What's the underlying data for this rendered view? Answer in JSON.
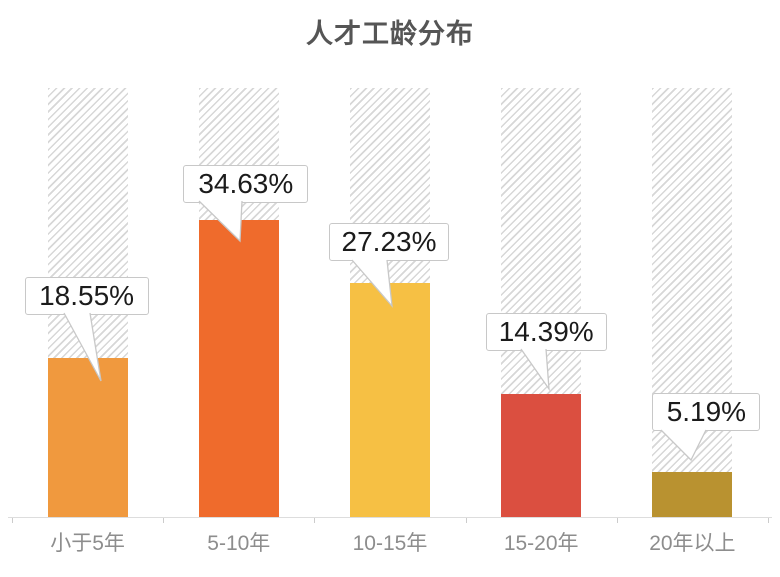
{
  "title": "人才工龄分布",
  "chart_data": {
    "type": "bar",
    "title": "人才工龄分布",
    "categories": [
      "小于5年",
      "5-10年",
      "10-15年",
      "15-20年",
      "20年以上"
    ],
    "values": [
      18.55,
      34.63,
      27.23,
      14.39,
      5.19
    ],
    "value_labels": [
      "18.55%",
      "34.63%",
      "27.23%",
      "14.39%",
      "5.19%"
    ],
    "bar_colors": [
      "#F0993E",
      "#EF6B2C",
      "#F6C044",
      "#DB4F40",
      "#B99230"
    ],
    "xlabel": "",
    "ylabel": "",
    "ylim": [
      0,
      50
    ],
    "grid": false,
    "legend": "none",
    "background_track": "full-height hatched placeholder column behind each bar",
    "label_style": "white callout box with tail pointing to bar top"
  },
  "styles": {
    "background": "#ffffff",
    "title_color": "#555555",
    "axis_color": "#dddddd",
    "tick_color": "#cccccc",
    "xlabel_color": "#8d8d8d",
    "hatch_color": "#d7d7d7",
    "callout_border": "#c8c8c8",
    "callout_text": "#1b1b1b"
  }
}
